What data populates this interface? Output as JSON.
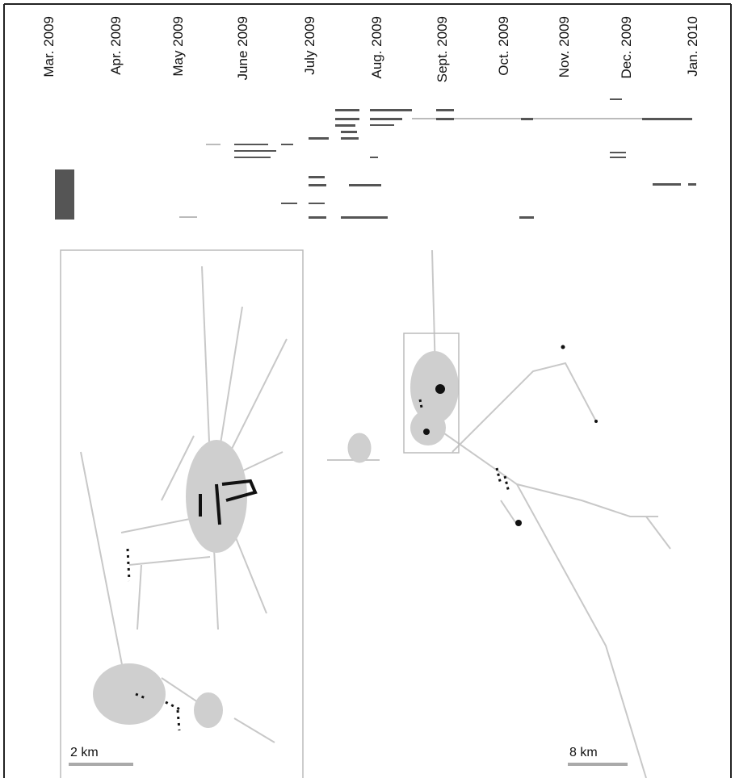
{
  "timeline": {
    "months": [
      "Mar. 2009",
      "Apr. 2009",
      "May 2009",
      "June 2009",
      "July 2009",
      "Aug. 2009",
      "Sept. 2009",
      "Oct. 2009",
      "Nov. 2009",
      "Dec. 2009",
      "Jan. 2010"
    ]
  },
  "inset_map": {
    "scale_label": "2 km"
  },
  "overview_map": {
    "scale_label": "8 km"
  }
}
